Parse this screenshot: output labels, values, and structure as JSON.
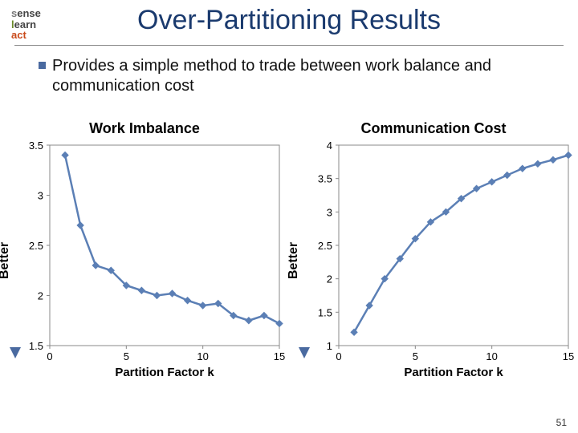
{
  "logo": {
    "line1a": "s",
    "line1b": "ense",
    "line2a": "l",
    "line2b": "earn",
    "line3": "act"
  },
  "title": "Over-Partitioning Results",
  "bullet": "Provides a simple method to trade between work balance and communication cost",
  "better_label": "Better",
  "page_number": "51",
  "left_chart": {
    "title": "Work Imbalance",
    "type": "line",
    "xlabel": "Partition Factor k",
    "xlim": [
      0,
      15
    ],
    "xtick_step": 5,
    "ylim": [
      1.5,
      3.5
    ],
    "ytick_step": 0.5,
    "ytick_labels": [
      "1.5",
      "2",
      "2.5",
      "3",
      "3.5"
    ],
    "line_color": "#5b7fb5",
    "marker_color": "#5b7fb5",
    "marker_size": 4,
    "line_width": 2.5,
    "background_color": "#ffffff",
    "border_color": "#888888",
    "data": [
      {
        "x": 1,
        "y": 3.4
      },
      {
        "x": 2,
        "y": 2.7
      },
      {
        "x": 3,
        "y": 2.3
      },
      {
        "x": 4,
        "y": 2.25
      },
      {
        "x": 5,
        "y": 2.1
      },
      {
        "x": 6,
        "y": 2.05
      },
      {
        "x": 7,
        "y": 2.0
      },
      {
        "x": 8,
        "y": 2.02
      },
      {
        "x": 9,
        "y": 1.95
      },
      {
        "x": 10,
        "y": 1.9
      },
      {
        "x": 11,
        "y": 1.92
      },
      {
        "x": 12,
        "y": 1.8
      },
      {
        "x": 13,
        "y": 1.75
      },
      {
        "x": 14,
        "y": 1.8
      },
      {
        "x": 15,
        "y": 1.72
      }
    ]
  },
  "right_chart": {
    "title": "Communication Cost",
    "type": "line",
    "xlabel": "Partition Factor k",
    "xlim": [
      0,
      15
    ],
    "xtick_step": 5,
    "ylim": [
      1,
      4
    ],
    "ytick_step": 0.5,
    "ytick_labels": [
      "1",
      "1.5",
      "2",
      "2.5",
      "3",
      "3.5",
      "4"
    ],
    "line_color": "#5b7fb5",
    "marker_color": "#5b7fb5",
    "marker_size": 4,
    "line_width": 2.5,
    "background_color": "#ffffff",
    "border_color": "#888888",
    "data": [
      {
        "x": 1,
        "y": 1.2
      },
      {
        "x": 2,
        "y": 1.6
      },
      {
        "x": 3,
        "y": 2.0
      },
      {
        "x": 4,
        "y": 2.3
      },
      {
        "x": 5,
        "y": 2.6
      },
      {
        "x": 6,
        "y": 2.85
      },
      {
        "x": 7,
        "y": 3.0
      },
      {
        "x": 8,
        "y": 3.2
      },
      {
        "x": 9,
        "y": 3.35
      },
      {
        "x": 10,
        "y": 3.45
      },
      {
        "x": 11,
        "y": 3.55
      },
      {
        "x": 12,
        "y": 3.65
      },
      {
        "x": 13,
        "y": 3.72
      },
      {
        "x": 14,
        "y": 3.78
      },
      {
        "x": 15,
        "y": 3.85
      }
    ]
  }
}
